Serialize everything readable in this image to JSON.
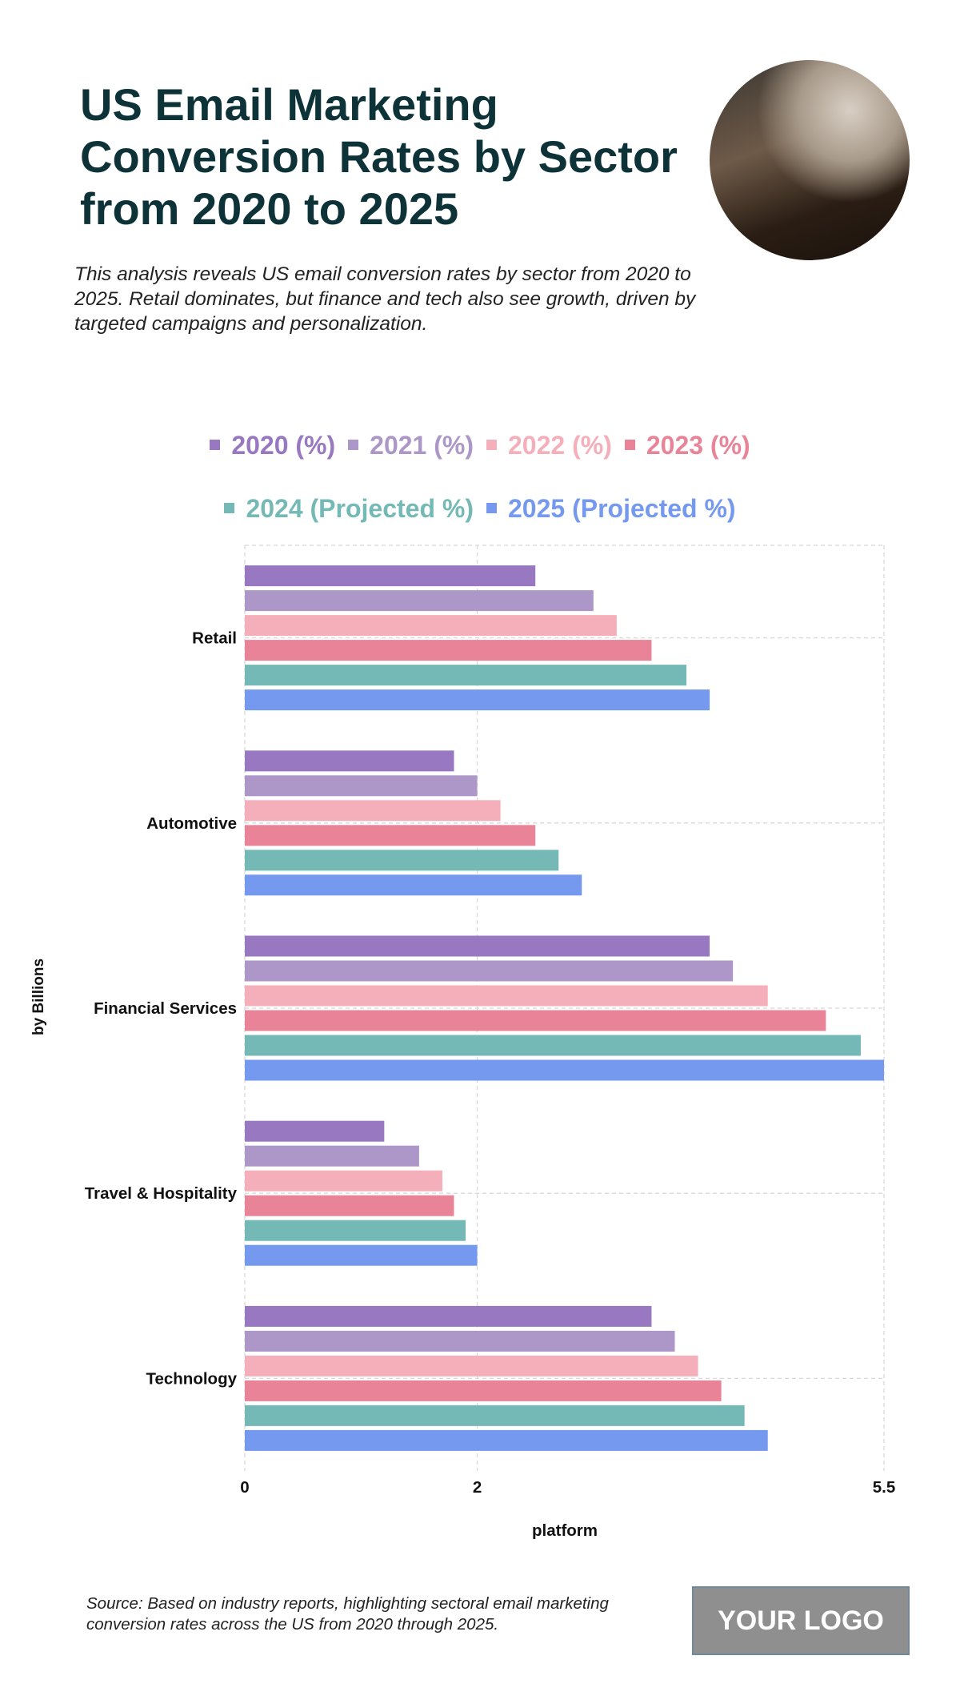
{
  "header": {
    "title": "US Email Marketing Conversion Rates by Sector from 2020 to 2025",
    "subtitle": "This analysis reveals US email conversion rates by sector from 2020 to 2025. Retail dominates, but finance and tech also see growth, driven by targeted campaigns and personalization."
  },
  "footer": {
    "source": "Source: Based on industry reports, highlighting sectoral email marketing conversion rates across the US from 2020 through 2025.",
    "logo": "YOUR LOGO"
  },
  "chart_data": {
    "type": "bar",
    "orientation": "horizontal",
    "title": "US Email Marketing Conversion Rates by Sector from 2020 to 2025",
    "xlabel": "platform",
    "ylabel": "by Billions",
    "xlim": [
      0,
      5.5
    ],
    "xticks": [
      "0",
      "2",
      "5.5"
    ],
    "xtick_values": [
      0,
      2,
      5.5
    ],
    "grid": true,
    "legend_position": "top",
    "categories": [
      "Retail",
      "Automotive",
      "Financial Services",
      "Travel & Hospitality",
      "Technology"
    ],
    "series": [
      {
        "name": "2020 (%)",
        "color": "#9878c0",
        "values": [
          2.5,
          1.8,
          4.0,
          1.2,
          3.5
        ]
      },
      {
        "name": "2021 (%)",
        "color": "#ad97c8",
        "values": [
          3.0,
          2.0,
          4.2,
          1.5,
          3.7
        ]
      },
      {
        "name": "2022 (%)",
        "color": "#f5afbb",
        "values": [
          3.2,
          2.2,
          4.5,
          1.7,
          3.9
        ]
      },
      {
        "name": "2023 (%)",
        "color": "#e98498",
        "values": [
          3.5,
          2.5,
          5.0,
          1.8,
          4.1
        ]
      },
      {
        "name": "2024 (Projected %)",
        "color": "#74b9b5",
        "values": [
          3.8,
          2.7,
          5.3,
          1.9,
          4.3
        ]
      },
      {
        "name": "2025 (Projected %)",
        "color": "#7599ee",
        "values": [
          4.0,
          2.9,
          5.5,
          2.0,
          4.5
        ]
      }
    ]
  }
}
